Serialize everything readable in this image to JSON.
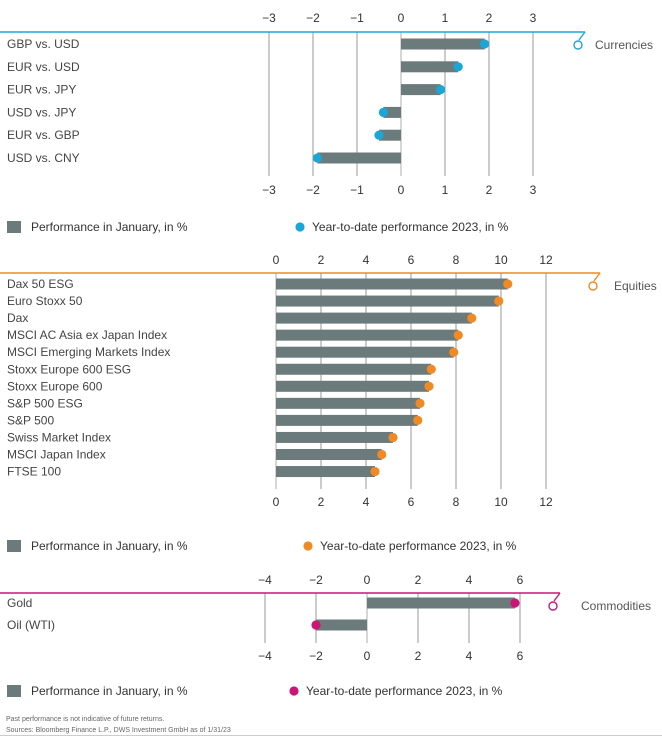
{
  "chart_data": [
    {
      "type": "bar",
      "section_label": "Currencies",
      "accent": "#1aa7d8",
      "bar_color": "#6b7b7b",
      "categories": [
        "GBP vs. USD",
        "EUR vs. USD",
        "EUR vs. JPY",
        "USD vs. JPY",
        "EUR vs. GBP",
        "USD vs. CNY"
      ],
      "series": [
        {
          "name": "Performance in January, in %",
          "values": [
            1.9,
            1.3,
            0.9,
            -0.4,
            -0.5,
            -1.9
          ]
        },
        {
          "name": "Year-to-date performance 2023, in %",
          "values": [
            1.9,
            1.3,
            0.9,
            -0.4,
            -0.5,
            -1.9
          ]
        }
      ],
      "ticks": [
        -3,
        -2,
        -1,
        0,
        1,
        2,
        3
      ],
      "tick_labels": [
        "−3",
        "−2",
        "−1",
        "0",
        "1",
        "2",
        "3"
      ],
      "xlim": [
        -3,
        3
      ],
      "grid": true,
      "legend_position": "bottom"
    },
    {
      "type": "bar",
      "section_label": "Equities",
      "accent": "#f08a24",
      "bar_color": "#6b7b7b",
      "categories": [
        "Dax 50 ESG",
        "Euro Stoxx 50",
        "Dax",
        "MSCI AC Asia ex Japan Index",
        "MSCI Emerging Markets Index",
        "Stoxx Europe 600 ESG",
        "Stoxx Europe 600",
        "S&P 500 ESG",
        "S&P 500",
        "Swiss Market Index",
        "MSCI Japan Index",
        "FTSE 100"
      ],
      "series": [
        {
          "name": "Performance in January, in %",
          "values": [
            10.3,
            9.9,
            8.7,
            8.1,
            7.9,
            6.9,
            6.8,
            6.4,
            6.3,
            5.2,
            4.7,
            4.4
          ]
        },
        {
          "name": "Year-to-date performance 2023, in %",
          "values": [
            10.3,
            9.9,
            8.7,
            8.1,
            7.9,
            6.9,
            6.8,
            6.4,
            6.3,
            5.2,
            4.7,
            4.4
          ]
        }
      ],
      "ticks": [
        0,
        2,
        4,
        6,
        8,
        10,
        12
      ],
      "tick_labels": [
        "0",
        "2",
        "4",
        "6",
        "8",
        "10",
        "12"
      ],
      "xlim": [
        0,
        12
      ],
      "grid": true,
      "legend_position": "bottom"
    },
    {
      "type": "bar",
      "section_label": "Commodities",
      "accent": "#cc1677",
      "bar_color": "#6b7b7b",
      "categories": [
        "Gold",
        "Oil (WTI)"
      ],
      "series": [
        {
          "name": "Performance in January, in %",
          "values": [
            5.8,
            -2.0
          ]
        },
        {
          "name": "Year-to-date performance 2023, in %",
          "values": [
            5.8,
            -2.0
          ]
        }
      ],
      "ticks": [
        -4,
        -2,
        0,
        2,
        4,
        6
      ],
      "tick_labels": [
        "−4",
        "−2",
        "0",
        "2",
        "4",
        "6"
      ],
      "xlim": [
        -4,
        6
      ],
      "grid": true,
      "legend_position": "bottom"
    }
  ],
  "footnote": {
    "line1": "Past performance is not indicative of future returns.",
    "line2": "Sources: Bloomberg Finance L.P., DWS Investment GmbH as of 1/31/23"
  }
}
